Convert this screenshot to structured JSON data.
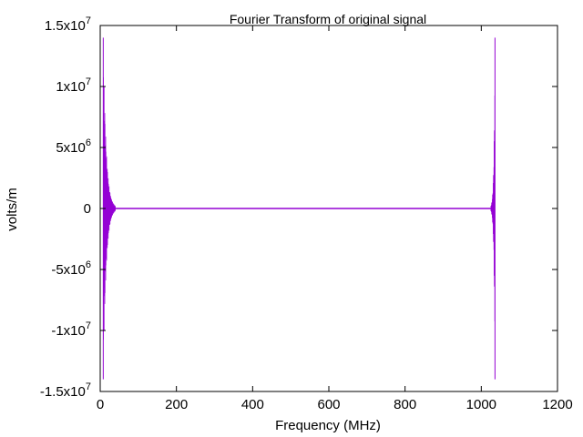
{
  "chart_data": {
    "type": "line",
    "title": "Fourier Transform of original signal",
    "xlabel": "Frequency (MHz)",
    "ylabel": "volts/m",
    "xlim": [
      0,
      1200
    ],
    "ylim": [
      -15000000,
      15000000
    ],
    "x_ticks": [
      {
        "value": 0,
        "label": "0"
      },
      {
        "value": 200,
        "label": "200"
      },
      {
        "value": 400,
        "label": "400"
      },
      {
        "value": 600,
        "label": "600"
      },
      {
        "value": 800,
        "label": "800"
      },
      {
        "value": 1000,
        "label": "1000"
      },
      {
        "value": 1200,
        "label": "1200"
      }
    ],
    "y_ticks": [
      {
        "value": 15000000,
        "mantissa": "1.5x10",
        "exponent": "7"
      },
      {
        "value": 10000000,
        "mantissa": "1x10",
        "exponent": "7"
      },
      {
        "value": 5000000,
        "mantissa": "5x10",
        "exponent": "6"
      },
      {
        "value": 0,
        "mantissa": "0",
        "exponent": ""
      },
      {
        "value": -5000000,
        "mantissa": "-5x10",
        "exponent": "6"
      },
      {
        "value": -10000000,
        "mantissa": "-1x10",
        "exponent": "7"
      },
      {
        "value": -15000000,
        "mantissa": "-1.5x10",
        "exponent": "7"
      }
    ],
    "grid": false,
    "line_color": "#9400d3",
    "series": [
      {
        "x_range": [
          8,
          1036
        ],
        "zero_baseline": [
          40,
          1025
        ],
        "peaks": [
          {
            "x": 8,
            "max": 14000000,
            "min": -14000000,
            "decay_to_x": 40
          },
          {
            "x": 1036,
            "max": 14000000,
            "min": -14000000,
            "decay_to_x": 1025
          }
        ]
      }
    ]
  }
}
